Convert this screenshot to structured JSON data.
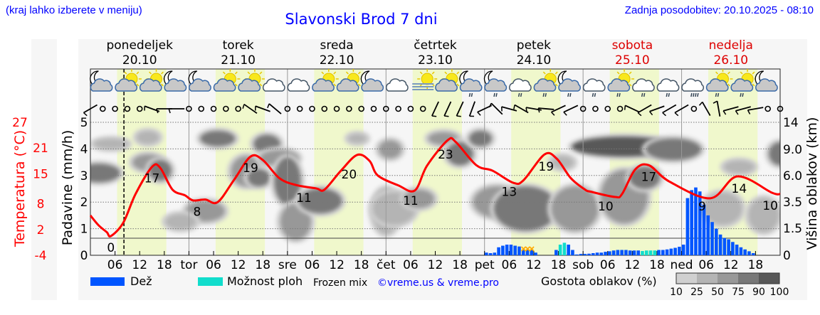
{
  "header": {
    "hint": "(kraj lahko izberete v meniju)",
    "title": "Slavonski Brod 7 dni",
    "updated": "Zadnja posodobitev: 20.10.2025 - 08:10"
  },
  "colors": {
    "title": "#0000ff",
    "temperature": "#ff0000",
    "rain": "#0055ff",
    "shower": "#11ddcc",
    "daylight": "#f0f8cc",
    "weekend": "#dd0000",
    "frozen": "#ffaa00"
  },
  "days": [
    {
      "name": "ponedeljek",
      "date": "20.10",
      "weekend": false
    },
    {
      "name": "torek",
      "date": "21.10",
      "weekend": false
    },
    {
      "name": "sreda",
      "date": "22.10",
      "weekend": false
    },
    {
      "name": "četrtek",
      "date": "23.10",
      "weekend": false
    },
    {
      "name": "petek",
      "date": "24.10",
      "weekend": false
    },
    {
      "name": "sobota",
      "date": "25.10",
      "weekend": true
    },
    {
      "name": "nedelja",
      "date": "26.10",
      "weekend": true
    }
  ],
  "weather_icons": [
    "moon-cloud",
    "sun-cloud",
    "sun-cloud",
    "moon-cloud",
    "moon-cloud",
    "sun-cloud",
    "sun-cloud",
    "cloud",
    "cloud",
    "sun-cloud",
    "sun-cloud",
    "moon-cloud",
    "cloud",
    "sun-fog",
    "sun-cloud",
    "moon-cloud-rain",
    "moon-cloud-rain",
    "cloud-rain",
    "sun-cloud-rain",
    "moon-cloud-rain",
    "cloud-rain",
    "sun-cloud-rain",
    "cloud-rain",
    "cloud-rain",
    "cloud-heavy-rain",
    "sun-cloud-rain",
    "sun-cloud-rain",
    "moon-cloud"
  ],
  "wind_every_3h": [
    -30,
    null,
    null,
    null,
    null,
    20,
    0,
    0,
    null,
    null,
    null,
    null,
    null,
    35,
    20,
    40,
    null,
    null,
    null,
    null,
    null,
    null,
    null,
    null,
    null,
    null,
    null,
    null,
    -65,
    -65,
    -65,
    -70,
    -25,
    45,
    15,
    30,
    10,
    5,
    -25,
    -25,
    null,
    null,
    null,
    null,
    25,
    -30,
    -20,
    -30,
    -30,
    null,
    60,
    80,
    -15,
    -15,
    -10,
    null,
    null
  ],
  "chart_data": {
    "type": "line",
    "title": "Slavonski Brod 7 dni",
    "now_hour": 8.17,
    "x_unit": "hours since 20.10 00:00",
    "x_ticks": [
      "06",
      "12",
      "18",
      "tor",
      "06",
      "12",
      "18",
      "sre",
      "06",
      "12",
      "18",
      "čet",
      "06",
      "12",
      "18",
      "pet",
      "06",
      "12",
      "18",
      "sob",
      "06",
      "12",
      "18",
      "ned",
      "06",
      "12",
      "18"
    ],
    "y_left_temperature": {
      "label": "Temperatura (°C)",
      "ticks": [
        "27",
        "21",
        "15",
        "8",
        "2",
        "-4"
      ],
      "range": [
        -4,
        27
      ]
    },
    "y_left_precip": {
      "label": "Padavine (mm/h)",
      "ticks": [
        "0",
        "1",
        "2",
        "3",
        "4",
        "5"
      ],
      "range": [
        0,
        5
      ]
    },
    "y_right_cloud": {
      "label": "Višina oblakov (km)",
      "ticks": [
        [
          "14",
          14
        ],
        [
          "9.0",
          9
        ],
        [
          "6.0",
          6
        ],
        [
          "3.5",
          3.5
        ],
        [
          "1.5",
          1.5
        ],
        [
          "0",
          0
        ]
      ]
    },
    "temperature": [
      [
        0,
        5.3
      ],
      [
        2,
        3
      ],
      [
        4,
        1.4
      ],
      [
        5,
        0.5
      ],
      [
        8,
        3.6
      ],
      [
        11,
        10.3
      ],
      [
        15,
        16.6
      ],
      [
        17,
        16.4
      ],
      [
        20,
        11.3
      ],
      [
        23,
        10
      ],
      [
        25,
        8.8
      ],
      [
        28,
        9
      ],
      [
        31,
        8.4
      ],
      [
        35,
        13.6
      ],
      [
        39,
        19
      ],
      [
        42,
        18.2
      ],
      [
        46,
        14
      ],
      [
        50,
        12.4
      ],
      [
        55,
        11.6
      ],
      [
        57,
        11.3
      ],
      [
        61,
        15.7
      ],
      [
        65,
        19.4
      ],
      [
        68,
        18
      ],
      [
        70,
        14.6
      ],
      [
        75,
        12.3
      ],
      [
        79,
        11.1
      ],
      [
        82,
        16.9
      ],
      [
        87,
        22.8
      ],
      [
        89,
        22.4
      ],
      [
        94,
        17
      ],
      [
        98,
        15.7
      ],
      [
        103,
        12.9
      ],
      [
        105.5,
        13.5
      ],
      [
        110.6,
        19.5
      ],
      [
        113.6,
        18.5
      ],
      [
        117,
        14
      ],
      [
        120.5,
        11.3
      ],
      [
        122,
        10.8
      ],
      [
        127.8,
        9.6
      ],
      [
        129.5,
        10.3
      ],
      [
        132.7,
        16
      ],
      [
        136,
        17
      ],
      [
        141,
        13.2
      ],
      [
        151,
        9.3
      ],
      [
        157.6,
        14.4
      ],
      [
        166,
        10.6
      ],
      [
        168,
        10.3
      ]
    ],
    "temperature_labels": [
      [
        5,
        "0"
      ],
      [
        15,
        "17"
      ],
      [
        26,
        "8"
      ],
      [
        39,
        "19"
      ],
      [
        52,
        "11"
      ],
      [
        63,
        "20"
      ],
      [
        78,
        "11"
      ],
      [
        86.5,
        "23"
      ],
      [
        102,
        "13"
      ],
      [
        111,
        "19"
      ],
      [
        125.5,
        "10"
      ],
      [
        136,
        "17"
      ],
      [
        149,
        "9"
      ],
      [
        158,
        "14"
      ],
      [
        168,
        "10"
      ]
    ],
    "precip_start_hour_1": 96,
    "precip_1": [
      0.1,
      0.08,
      0.1,
      0.3,
      0.36,
      0.4,
      0.4,
      0.36,
      0.33,
      0.2,
      0.2,
      0.2,
      0.1
    ],
    "frozen_mix_hours": [
      105,
      106,
      107
    ],
    "precip_start_hour_2": 113,
    "precip_2": [
      0.2,
      0.4,
      0.47,
      0.4,
      0.2,
      0.03,
      0.05,
      0.05,
      0.06,
      0.08,
      0.1,
      0.1,
      0.13,
      0.15,
      0.18,
      0.2,
      0.2,
      0.2,
      0.18,
      0.18,
      0.18,
      0.16,
      0.18,
      0.18,
      0.18,
      0.2,
      0.2,
      0.22,
      0.25,
      0.28,
      0.32,
      0.4,
      2.15,
      2.45,
      2.55,
      2.4,
      1.9,
      1.5,
      1.25,
      1.0,
      0.78,
      0.65,
      0.6,
      0.5,
      0.4,
      0.3,
      0.22,
      0.15,
      0.08
    ],
    "shower_hours": [
      114,
      115,
      134,
      135,
      136,
      137
    ],
    "cloud_blobs_hour_km_spanh_spankm_density": [
      [
        2,
        6.3,
        9,
        1.2,
        60
      ],
      [
        5,
        10,
        7,
        0.5,
        25
      ],
      [
        14,
        7.5,
        6,
        1,
        50
      ],
      [
        17,
        6.6,
        4,
        1.5,
        75
      ],
      [
        14,
        11.2,
        4,
        1,
        30
      ],
      [
        28,
        2.8,
        8,
        1,
        40
      ],
      [
        22,
        2,
        6,
        0.6,
        30
      ],
      [
        31,
        11,
        7,
        1.5,
        75
      ],
      [
        38,
        6.5,
        6,
        2.5,
        55
      ],
      [
        43,
        10,
        5,
        2,
        70
      ],
      [
        41,
        5.8,
        4,
        1,
        65
      ],
      [
        46,
        8,
        8,
        1,
        40
      ],
      [
        48,
        5.5,
        5,
        4,
        70
      ],
      [
        50,
        2,
        6,
        2,
        45
      ],
      [
        56,
        3.6,
        9,
        1.5,
        60
      ],
      [
        65,
        11,
        3,
        0.3,
        25
      ],
      [
        72,
        2.8,
        5,
        3,
        30
      ],
      [
        74,
        3,
        9,
        2,
        35
      ],
      [
        73,
        9,
        4,
        1.5,
        55
      ],
      [
        80,
        3.8,
        6,
        1,
        55
      ],
      [
        86,
        11,
        6,
        1,
        55
      ],
      [
        90,
        8.5,
        5,
        2,
        65
      ],
      [
        95,
        11,
        4,
        1.5,
        60
      ],
      [
        99,
        3.5,
        10,
        2,
        45
      ],
      [
        106,
        3,
        14,
        3,
        60
      ],
      [
        118,
        3,
        10,
        3,
        45
      ],
      [
        115,
        7.5,
        4,
        0.6,
        30
      ],
      [
        130,
        9.5,
        24,
        2,
        88
      ],
      [
        142,
        9,
        12,
        2,
        75
      ],
      [
        130,
        4,
        10,
        4,
        45
      ],
      [
        135,
        5.8,
        6,
        1.5,
        65
      ],
      [
        154,
        3,
        8,
        2,
        30
      ],
      [
        158,
        7,
        6,
        0.6,
        35
      ],
      [
        164,
        2.5,
        6,
        2,
        30
      ],
      [
        168,
        8.5,
        4,
        2,
        60
      ]
    ]
  },
  "legend": {
    "rain": "Dež",
    "shower": "Možnost ploh",
    "frozen": "Frozen mix",
    "credit": "©vreme.us & vreme.pro",
    "density_title": "Gostota oblakov (%)",
    "density_levels": [
      "10",
      "25",
      "50",
      "75",
      "90",
      "100"
    ],
    "density_colors": [
      "#d0d0d0",
      "#b4b4b4",
      "#989898",
      "#787878",
      "#585858"
    ]
  }
}
